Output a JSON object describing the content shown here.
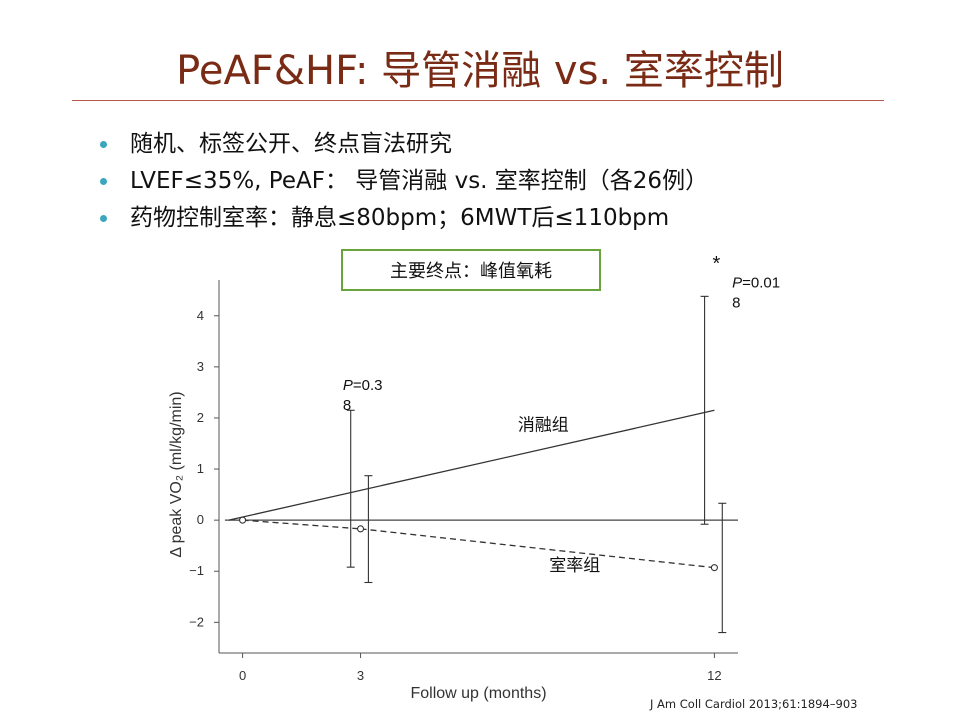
{
  "slide": {
    "title": "PeAF&HF: 导管消融 vs. 室率控制",
    "bullets": [
      "随机、标签公开、终点盲法研究",
      "LVEF≤35%, PeAF： 导管消融 vs. 室率控制（各26例）",
      "药物控制室率：静息≤80bpm；6MWT后≤110bpm"
    ],
    "citation": "J Am Coll Cardiol 2013;61:1894–903"
  },
  "chart_data": {
    "type": "line",
    "box_label": "主要终点：峰值氧耗",
    "xlabel": "Follow up (months)",
    "ylabel": "Δ peak VO₂ (ml/kg/min)",
    "xlim": [
      -0.6,
      12.6
    ],
    "ylim": [
      -2.6,
      4.7
    ],
    "x_ticks": [
      0,
      3,
      12
    ],
    "y_ticks": [
      -2,
      -1,
      0,
      1,
      2,
      3,
      4
    ],
    "series": [
      {
        "name": "消融组",
        "style": "solid",
        "color": "#333333",
        "x": [
          -0.35,
          12
        ],
        "y": [
          0,
          2.15
        ],
        "errorbars": [
          {
            "x": 2.75,
            "low": -0.92,
            "high": 2.15
          },
          {
            "x": 11.75,
            "low": -0.08,
            "high": 4.38
          }
        ]
      },
      {
        "name": "室率组",
        "style": "dashed",
        "color": "#333333",
        "x": [
          0,
          3,
          12
        ],
        "y": [
          0,
          -0.17,
          -0.93
        ],
        "errorbars": [
          {
            "x": 3.2,
            "low": -1.22,
            "high": 0.87
          },
          {
            "x": 12.2,
            "low": -2.2,
            "high": 0.33
          }
        ]
      }
    ],
    "annotations": [
      {
        "text_lines": [
          "P=0.3",
          "8"
        ],
        "x": 2.55,
        "y": 2.55
      },
      {
        "text_lines": [
          "P=0.01",
          "8"
        ],
        "x": 12.45,
        "y": 4.55
      },
      {
        "text_lines": [
          "*"
        ],
        "x": 12.05,
        "y": 4.9
      }
    ],
    "series_labels": [
      {
        "text": "消融组",
        "x": 7.0,
        "y": 1.75
      },
      {
        "text": "室率组",
        "x": 7.8,
        "y": -1.0
      }
    ],
    "colors": {
      "axis": "#555555",
      "line": "#333333",
      "box_border": "#6aa33c"
    }
  }
}
